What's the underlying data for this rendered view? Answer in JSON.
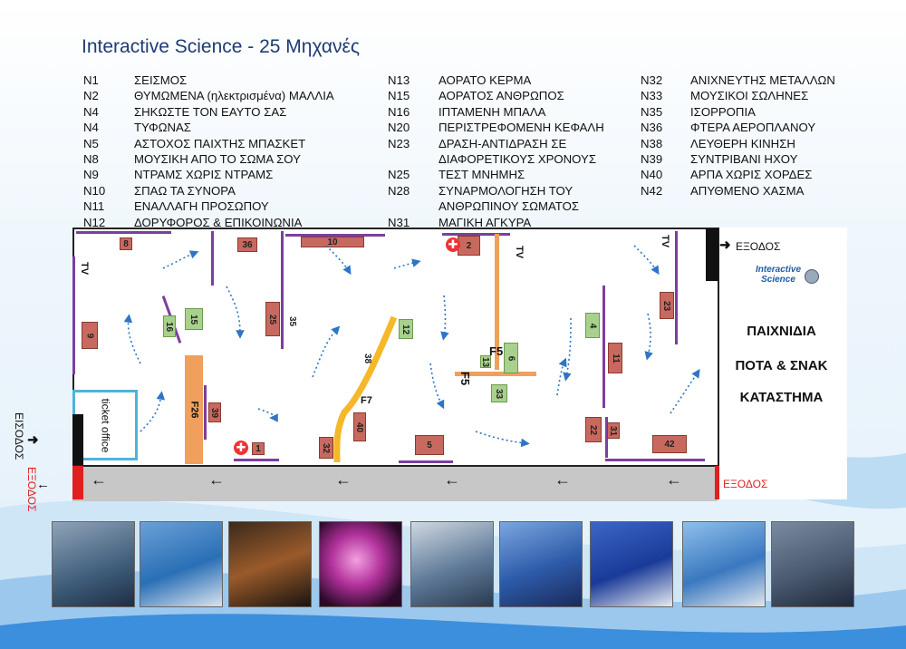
{
  "title": "Interactive Science - 25 Μηχανές",
  "legend_col1": [
    {
      "code": "N1",
      "name": "ΣΕΙΣΜΟΣ"
    },
    {
      "code": "N2",
      "name": "ΘΥΜΩΜΕΝΑ (ηλεκτρισμένα) ΜΑΛΛΙΑ"
    },
    {
      "code": "N4",
      "name": "ΣΗΚΩΣΤΕ ΤΟΝ ΕΑΥΤΟ ΣΑΣ"
    },
    {
      "code": "N4",
      "name": "ΤΥΦΩΝΑΣ"
    },
    {
      "code": "N5",
      "name": "ΑΣΤΟΧΟΣ ΠΑΙΧΤΗΣ ΜΠΑΣΚΕΤ"
    },
    {
      "code": "N8",
      "name": "ΜΟΥΣΙΚΗ ΑΠΟ ΤΟ ΣΩΜΑ ΣΟΥ"
    },
    {
      "code": "N9",
      "name": "ΝΤΡΑΜΣ ΧΩΡΙΣ ΝΤΡΑΜΣ"
    },
    {
      "code": "N10",
      "name": "ΣΠΑΩ ΤΑ ΣΥΝΟΡΑ"
    },
    {
      "code": "N11",
      "name": "ΕΝΑΛΛΑΓΗ ΠΡΟΣΩΠΟΥ"
    },
    {
      "code": "N12",
      "name": "ΔΟΡΥΦΟΡΟΣ & ΕΠΙΚΟΙΝΩΝΙΑ"
    }
  ],
  "legend_col2": [
    {
      "code": "N13",
      "name": "ΑΟΡΑΤΟ ΚΕΡΜΑ"
    },
    {
      "code": "N15",
      "name": "ΑΟΡΑΤΟΣ ΑΝΘΡΩΠΟΣ"
    },
    {
      "code": "N16",
      "name": "ΙΠΤΑΜΕΝΗ ΜΠΑΛΑ"
    },
    {
      "code": "N20",
      "name": "ΠΕΡΙΣΤΡΕΦΟΜΕΝΗ ΚΕΦΑΛΗ"
    },
    {
      "code": "N23",
      "name": "ΔΡΑΣΗ-ΑΝΤΙΔΡΑΣΗ ΣΕ"
    },
    {
      "code": "",
      "name": "ΔΙΑΦΟΡΕΤΙΚΟΥΣ ΧΡΟΝΟΥΣ"
    },
    {
      "code": "N25",
      "name": "ΤΕΣΤ ΜΝΗΜΗΣ"
    },
    {
      "code": "N28",
      "name": "ΣΥΝΑΡΜΟΛΟΓΗΣΗ ΤΟΥ"
    },
    {
      "code": "",
      "name": "ΑΝΘΡΩΠΙΝΟΥ ΣΩΜΑΤΟΣ"
    },
    {
      "code": "N31",
      "name": "ΜΑΓΙΚΗ ΑΓΚΥΡΑ"
    }
  ],
  "legend_col3": [
    {
      "code": "N32",
      "name": "ΑΝΙΧΝΕΥΤΗΣ ΜΕΤΑΛΛΩΝ"
    },
    {
      "code": "N33",
      "name": "ΜΟΥΣΙΚΟΙ ΣΩΛΗΝΕΣ"
    },
    {
      "code": "N35",
      "name": "ΙΣΟΡΡΟΠΙΑ"
    },
    {
      "code": "N36",
      "name": "ΦΤΕΡΑ ΑΕΡΟΠΛΑΝΟΥ"
    },
    {
      "code": "N38",
      "name": "ΛΕΥΘΕΡΗ ΚΙΝΗΣΗ"
    },
    {
      "code": "N39",
      "name": "ΣΥΝΤΡΙΒΑΝΙ ΗΧΟΥ"
    },
    {
      "code": "N40",
      "name": "ΑΡΠΑ ΧΩΡΙΣ ΧΟΡΔΕΣ"
    },
    {
      "code": "N42",
      "name": "ΑΠΥΘΜΕΝΟ ΧΑΣΜΑ"
    }
  ],
  "map": {
    "exit_top": "ΕΞΟΔΟΣ",
    "exit_bottom": "ΕΞΟΔΟΣ",
    "entrance": "ΕΙΣΟΔΟΣ",
    "entrance_exit": "ΕΞΟΔΟΣ",
    "ticket_office": "ticket office",
    "logo_line1": "Interactive",
    "logo_line2": "Science",
    "shop_line1": "ΠΑΙΧΝΙΔΙΑ",
    "shop_line2": "ΠΟΤΑ & ΣΝΑΚ",
    "shop_line3": "ΚΑΤΑΣΤΗΜΑ",
    "tv": "TV",
    "f26": "F26",
    "f7": "F7",
    "f5a": "F5",
    "f5b": "F5",
    "ex": {
      "n8": "8",
      "n36": "36",
      "n10": "10",
      "n2": "2",
      "n9": "9",
      "n16": "16",
      "n15": "15",
      "n25": "25",
      "n35": "35",
      "n12": "12",
      "n38": "38",
      "n4": "4",
      "n23": "23",
      "n13": "13",
      "n6": "6",
      "n33": "33",
      "n11": "11",
      "n39": "39",
      "n1": "1",
      "n32": "32",
      "n40": "40",
      "n5": "5",
      "n22": "22",
      "n31": "31",
      "n42": "42"
    }
  },
  "colors": {
    "wall": "#7b3f9e",
    "red_exhibit": "#c8695f",
    "green_exhibit": "#a9d18e",
    "orange": "#f0a05c",
    "title": "#1f3b73"
  }
}
